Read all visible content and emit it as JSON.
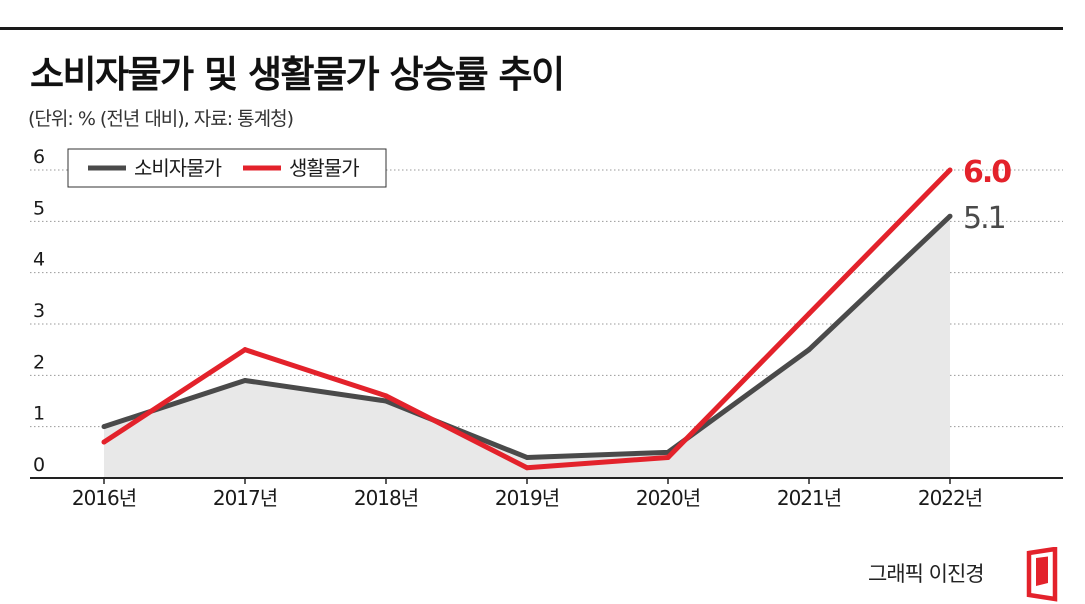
{
  "title": "소비자물가 및 생활물가 상승률 추이",
  "subtitle": "(단위: % (전년 대비), 자료: 통계청)",
  "credit": "그래픽 이진경",
  "colors": {
    "consumer": "#4a4a4a",
    "living": "#e3222b",
    "area": "#e8e8e8",
    "grid": "#9a9a9a",
    "axis": "#222222",
    "text": "#1a1a1a"
  },
  "chart_data": {
    "type": "line",
    "title": "소비자물가 및 생활물가 상승률 추이",
    "xlabel": "",
    "ylabel": "",
    "categories": [
      "2016년",
      "2017년",
      "2018년",
      "2019년",
      "2020년",
      "2021년",
      "2022년"
    ],
    "ylim": [
      0,
      6
    ],
    "yticks": [
      "0",
      "1",
      "2",
      "3",
      "4",
      "5",
      "6"
    ],
    "grid": true,
    "legend": "top-left",
    "series": [
      {
        "name": "소비자물가",
        "key": "consumer",
        "values": [
          1.0,
          1.9,
          1.5,
          0.4,
          0.5,
          2.5,
          5.1
        ],
        "end_label": "5.1",
        "filled": true
      },
      {
        "name": "생활물가",
        "key": "living",
        "values": [
          0.7,
          2.5,
          1.6,
          0.2,
          0.4,
          3.2,
          6.0
        ],
        "end_label": "6.0",
        "filled": false
      }
    ]
  }
}
